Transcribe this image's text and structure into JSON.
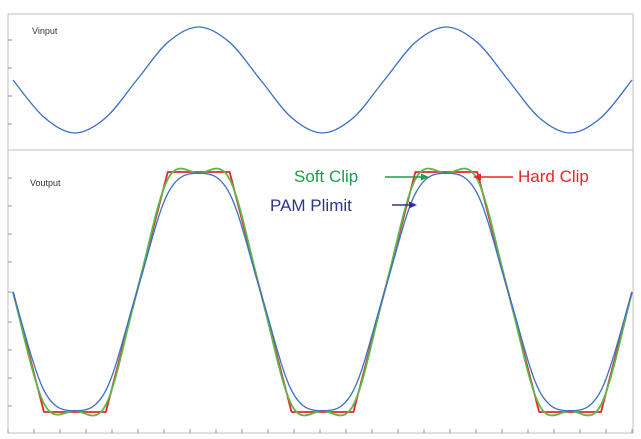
{
  "chart_data": [
    {
      "type": "line",
      "title": "Vinput",
      "xlabel": "",
      "ylabel": "",
      "grid": false,
      "series": [
        {
          "name": "Vinput",
          "color": "#3a6fc4",
          "x": [
            0,
            0.05,
            0.1,
            0.15,
            0.2,
            0.25,
            0.3,
            0.35,
            0.4,
            0.45,
            0.5,
            0.55,
            0.6,
            0.65,
            0.7,
            0.75,
            0.8,
            0.85,
            0.9,
            0.95,
            1.0
          ],
          "y": [
            0.0,
            -0.7,
            -1.0,
            -0.71,
            0.0,
            0.71,
            1.0,
            0.71,
            0.0,
            -0.71,
            -1.0,
            -0.71,
            0.0,
            0.71,
            1.0,
            0.71,
            0.0,
            -0.71,
            -1.0,
            -0.71,
            0.0
          ]
        }
      ]
    },
    {
      "type": "line",
      "title": "Voutput",
      "xlabel": "",
      "ylabel": "",
      "grid": false,
      "series": [
        {
          "name": "Hard Clip",
          "color": "#e8262a",
          "x": [
            0,
            0.05,
            0.1,
            0.15,
            0.2,
            0.25,
            0.3,
            0.35,
            0.4,
            0.45,
            0.5,
            0.55,
            0.6,
            0.65,
            0.7,
            0.75,
            0.8,
            0.85,
            0.9,
            0.95,
            1.0
          ],
          "y": [
            0.0,
            -1.0,
            -1.0,
            -1.0,
            0.0,
            1.0,
            1.0,
            1.0,
            0.0,
            -1.0,
            -1.0,
            -1.0,
            0.0,
            1.0,
            1.0,
            1.0,
            0.0,
            -1.0,
            -1.0,
            -1.0,
            0.0
          ]
        },
        {
          "name": "Soft Clip",
          "color": "#5cb848",
          "x": [
            0,
            0.05,
            0.1,
            0.15,
            0.2,
            0.25,
            0.3,
            0.35,
            0.4,
            0.45,
            0.5,
            0.55,
            0.6,
            0.65,
            0.7,
            0.75,
            0.8,
            0.85,
            0.9,
            0.95,
            1.0
          ],
          "y": [
            0.0,
            -0.93,
            -0.99,
            -0.94,
            0.0,
            0.94,
            0.99,
            0.94,
            0.0,
            -0.94,
            -0.99,
            -0.94,
            0.0,
            0.94,
            0.99,
            0.94,
            0.0,
            -0.94,
            -0.99,
            -0.94,
            0.0
          ]
        },
        {
          "name": "PAM Plimit",
          "color": "#3a6fc4",
          "x": [
            0,
            0.05,
            0.1,
            0.15,
            0.2,
            0.25,
            0.3,
            0.35,
            0.4,
            0.45,
            0.5,
            0.55,
            0.6,
            0.65,
            0.7,
            0.75,
            0.8,
            0.85,
            0.9,
            0.95,
            1.0
          ],
          "y": [
            0.0,
            -0.82,
            -0.99,
            -0.82,
            0.0,
            0.82,
            0.99,
            0.82,
            0.0,
            -0.82,
            -0.99,
            -0.82,
            0.0,
            0.82,
            0.99,
            0.82,
            0.0,
            -0.82,
            -0.99,
            -0.82,
            0.0
          ]
        }
      ],
      "annotations": [
        {
          "text": "Soft Clip",
          "color": "#1a9e4a",
          "arrow_color": "#1a9e4a"
        },
        {
          "text": "Hard Clip",
          "color": "#e8262a",
          "arrow_color": "#e8262a"
        },
        {
          "text": "PAM Plimit",
          "color": "#2e3490",
          "arrow_color": "#2e3490"
        }
      ]
    }
  ]
}
